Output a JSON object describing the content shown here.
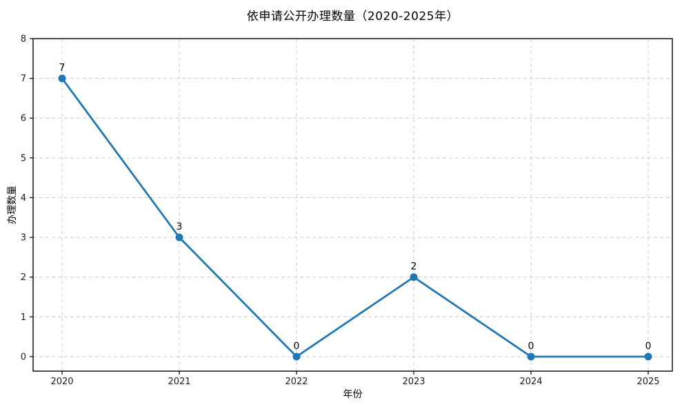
{
  "chart_data": {
    "type": "line",
    "title": "依申请公开办理数量（2020-2025年）",
    "xlabel": "年份",
    "ylabel": "办理数量",
    "categories": [
      "2020",
      "2021",
      "2022",
      "2023",
      "2024",
      "2025"
    ],
    "series": [
      {
        "name": "依申请公开办理数量",
        "values": [
          7,
          3,
          0,
          2,
          0,
          0
        ],
        "point_labels": [
          "7",
          "3",
          "0",
          "2",
          "0",
          "0"
        ]
      }
    ],
    "yticks": [
      0,
      1,
      2,
      3,
      4,
      5,
      6,
      7,
      8
    ],
    "ylim": [
      -0.365,
      8
    ],
    "grid": true,
    "legend": "none",
    "colors": {
      "line": "#1f77b4",
      "marker": "#1f77b4",
      "grid": "#cccccc",
      "background": "#ffffff",
      "text": "#000000"
    }
  }
}
